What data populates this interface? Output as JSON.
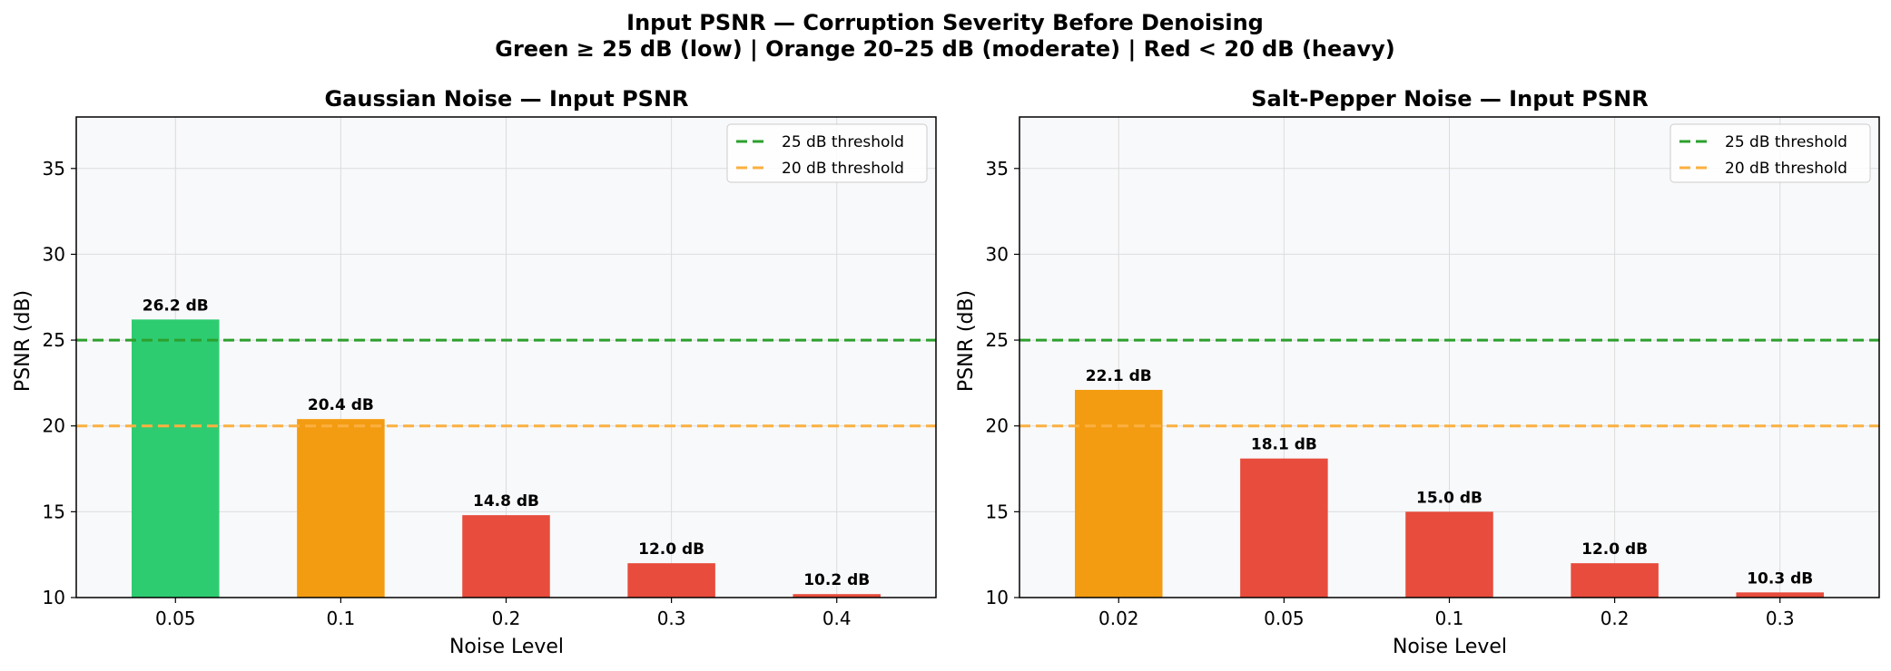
{
  "figure": {
    "title_line1": "Input PSNR — Corruption Severity Before Denoising",
    "title_line2": "Green ≥ 25 dB (low) | Orange 20–25 dB (moderate) | Red < 20 dB (heavy)"
  },
  "colors": {
    "green": "#2ecc71",
    "orange": "#f39c12",
    "red": "#e74c3c",
    "threshold_25": "#2ca02c",
    "threshold_20": "#fbb040",
    "axes_bg": "#f8f9fb",
    "grid": "#dcdcdc"
  },
  "chart_data": [
    {
      "type": "bar",
      "title": "Gaussian Noise — Input PSNR",
      "xlabel": "Noise Level",
      "ylabel": "PSNR (dB)",
      "categories": [
        "0.05",
        "0.1",
        "0.2",
        "0.3",
        "0.4"
      ],
      "values": [
        26.2,
        20.4,
        14.8,
        12.0,
        10.2
      ],
      "data_labels": [
        "26.2 dB",
        "20.4 dB",
        "14.8 dB",
        "12.0 dB",
        "10.2 dB"
      ],
      "ylim": [
        10,
        38
      ],
      "yticks": [
        10,
        15,
        20,
        25,
        30,
        35
      ],
      "grid": true,
      "thresholds": [
        {
          "value": 25,
          "label": "25 dB threshold",
          "color_key": "threshold_25"
        },
        {
          "value": 20,
          "label": "20 dB threshold",
          "color_key": "threshold_20"
        }
      ],
      "legend_position": "top-right"
    },
    {
      "type": "bar",
      "title": "Salt-Pepper Noise — Input PSNR",
      "xlabel": "Noise Level",
      "ylabel": "PSNR (dB)",
      "categories": [
        "0.02",
        "0.05",
        "0.1",
        "0.2",
        "0.3"
      ],
      "values": [
        22.1,
        18.1,
        15.0,
        12.0,
        10.3
      ],
      "data_labels": [
        "22.1 dB",
        "18.1 dB",
        "15.0 dB",
        "12.0 dB",
        "10.3 dB"
      ],
      "ylim": [
        10,
        38
      ],
      "yticks": [
        10,
        15,
        20,
        25,
        30,
        35
      ],
      "grid": true,
      "thresholds": [
        {
          "value": 25,
          "label": "25 dB threshold",
          "color_key": "threshold_25"
        },
        {
          "value": 20,
          "label": "20 dB threshold",
          "color_key": "threshold_20"
        }
      ],
      "legend_position": "top-right"
    }
  ]
}
